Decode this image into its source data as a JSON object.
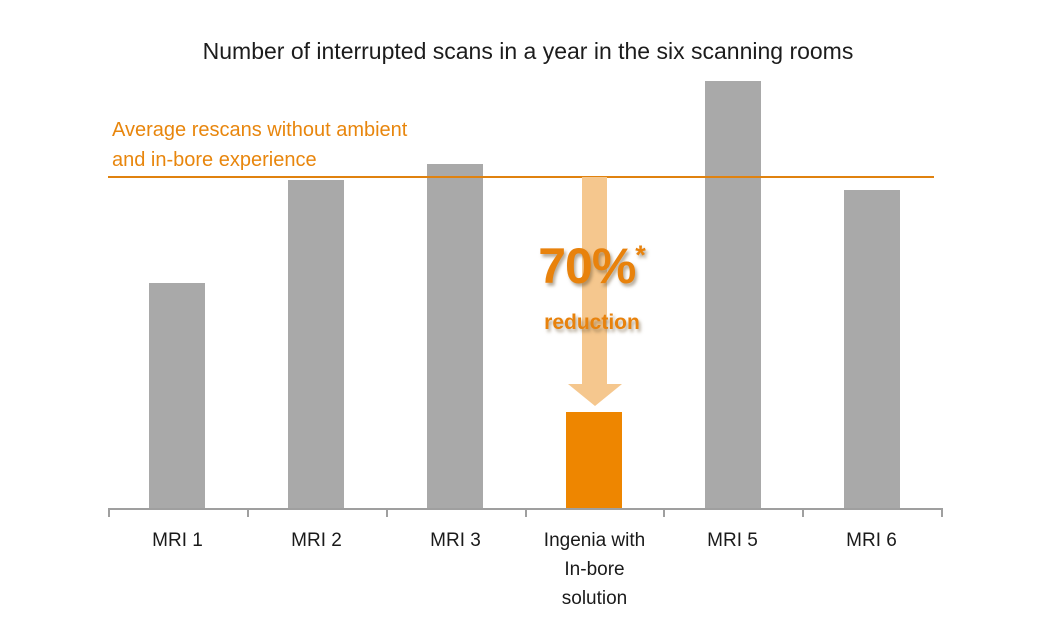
{
  "chart_data": {
    "type": "bar",
    "title": "Number of interrupted scans in a year in the six scanning rooms",
    "categories": [
      "MRI 1",
      "MRI 2",
      "MRI 3",
      "Ingenia with\nIn-bore\nsolution",
      "MRI 5",
      "MRI 6"
    ],
    "values": [
      68,
      99,
      104,
      29,
      129,
      96
    ],
    "value_units": "relative scale (no value axis shown; average line = 100)",
    "highlight_index": 3,
    "xlabel": "",
    "ylabel": "",
    "ylim": [
      0,
      132
    ],
    "grid": false,
    "legend": false,
    "average_line": {
      "value": 100,
      "label": "Average rescans without ambient\nand in-bore experience",
      "color": "#e0820f",
      "label_color": "#e8860d"
    },
    "reduction_annotation": {
      "value": "70%",
      "asterisk": "*",
      "caption": "reduction",
      "text_color": "#e8820c",
      "arrow_color": "#f5c78e"
    },
    "colors": {
      "bar_default": "#a9a9a9",
      "bar_highlight": "#ee8600",
      "axis": "#9f9f9f",
      "title_text": "#1c1c1c",
      "label_text": "#1a1a1a",
      "background": "#ffffff"
    }
  }
}
